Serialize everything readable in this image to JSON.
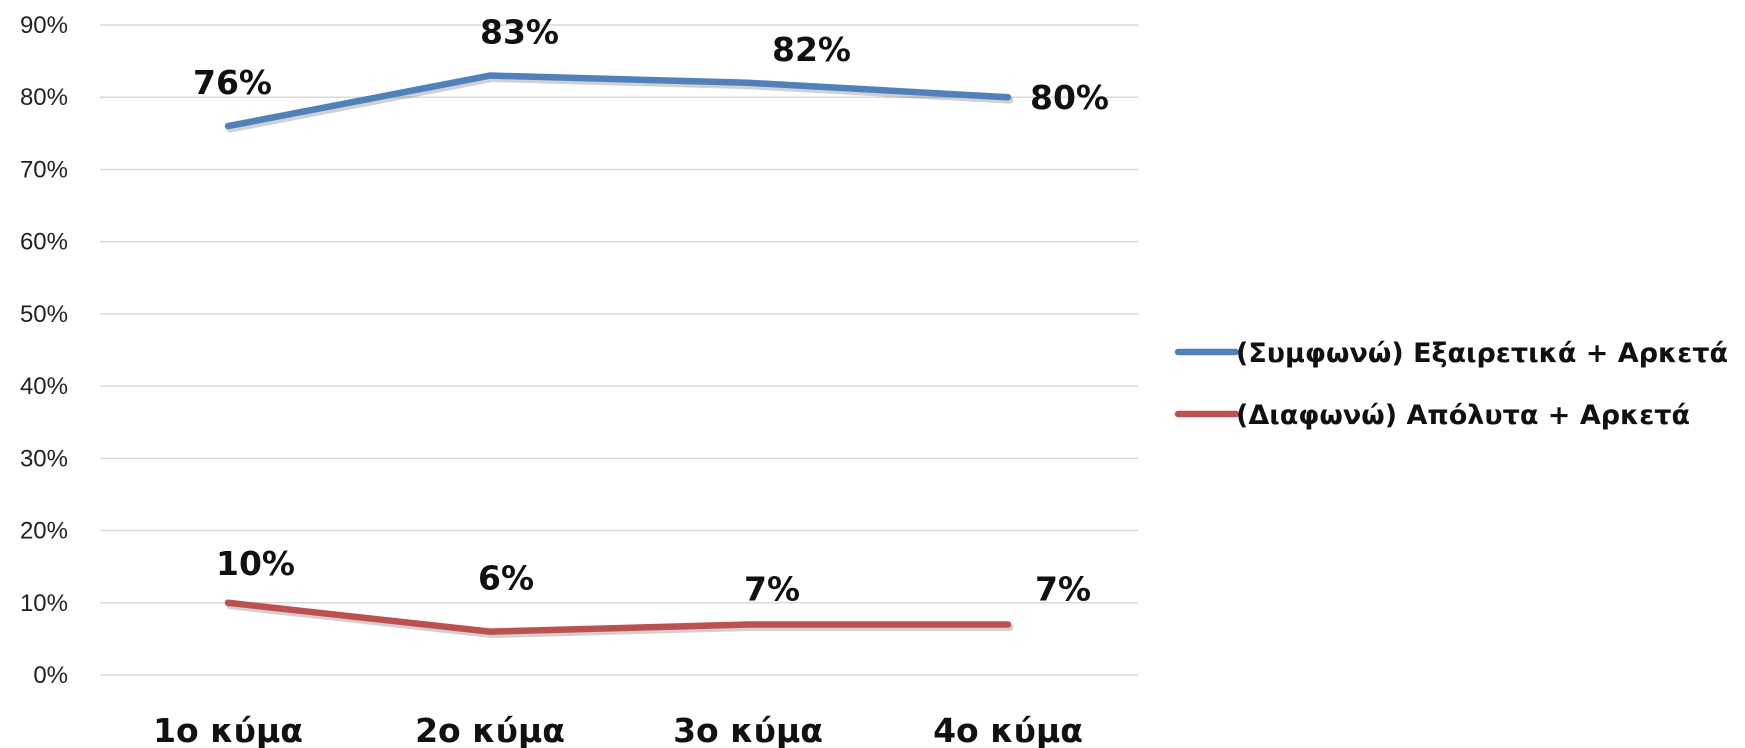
{
  "chart_data": {
    "type": "line",
    "title": "",
    "xlabel": "",
    "ylabel": "",
    "categories": [
      "1ο κύμα",
      "2ο κύμα",
      "3ο κύμα",
      "4ο κύμα"
    ],
    "y_ticks": [
      "0%",
      "10%",
      "20%",
      "30%",
      "40%",
      "50%",
      "60%",
      "70%",
      "80%",
      "90%"
    ],
    "ylim": [
      0,
      90
    ],
    "grid": "horizontal",
    "legend_position": "right",
    "series": [
      {
        "name": "(Συμφωνώ) Εξαιρετικά + Αρκετά",
        "color": "#4F81BD",
        "values": [
          76,
          83,
          82,
          80
        ],
        "labels": [
          "76%",
          "83%",
          "82%",
          "80%"
        ]
      },
      {
        "name": "(Διαφωνώ) Απόλυτα + Αρκετά",
        "color": "#C0504D",
        "values": [
          10,
          6,
          7,
          7
        ],
        "labels": [
          "10%",
          "6%",
          "7%",
          "7%"
        ]
      }
    ]
  }
}
